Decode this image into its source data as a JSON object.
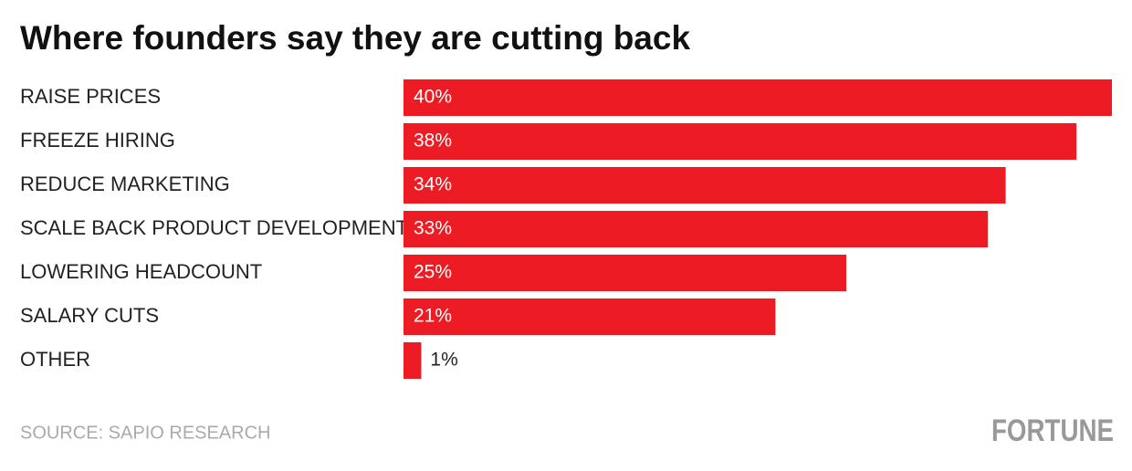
{
  "chart_data": {
    "type": "bar",
    "orientation": "horizontal",
    "title": "Where founders say they are cutting back",
    "categories": [
      "RAISE PRICES",
      "FREEZE HIRING",
      "REDUCE MARKETING",
      "SCALE BACK PRODUCT DEVELOPMENT",
      "LOWERING HEADCOUNT",
      "SALARY CUTS",
      "OTHER"
    ],
    "values": [
      40,
      38,
      34,
      33,
      25,
      21,
      1
    ],
    "value_labels": [
      "40%",
      "38%",
      "34%",
      "33%",
      "25%",
      "21%",
      "1%"
    ],
    "color": "#ed1c24",
    "source": "SOURCE: SAPIO RESEARCH",
    "brand": "FORTUNE"
  }
}
